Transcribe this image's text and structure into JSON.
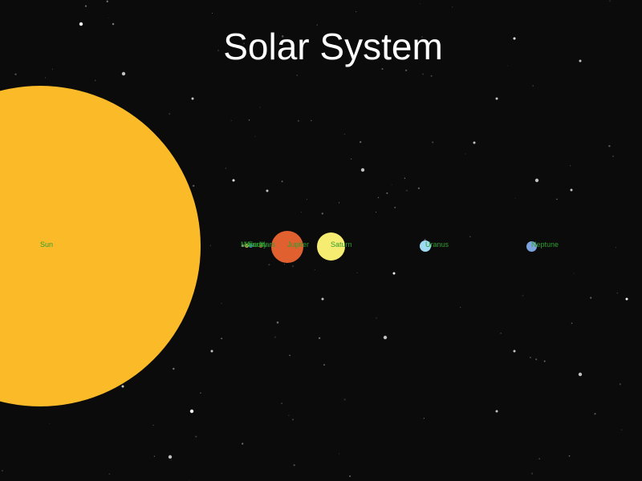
{
  "title": "Solar System",
  "colors": {
    "background": "#0c0b0c",
    "label": "#2e9e2e",
    "sun": "#fbbb28",
    "mercury": "#9a9a9a",
    "venus": "#d9b25a",
    "earth": "#3f7fd6",
    "mars": "#c8502d",
    "jupiter": "#e0602f",
    "saturn": "#f7ec72",
    "uranus": "#9fdcf3",
    "neptune": "#7da3de"
  },
  "bodies": [
    {
      "key": "sun",
      "label": "Sun"
    },
    {
      "key": "mercury",
      "label": "Mercury"
    },
    {
      "key": "venus",
      "label": "Venus"
    },
    {
      "key": "earth",
      "label": "Earth"
    },
    {
      "key": "mars",
      "label": "Mars"
    },
    {
      "key": "jupiter",
      "label": "Jupiter"
    },
    {
      "key": "saturn",
      "label": "Saturn"
    },
    {
      "key": "uranus",
      "label": "Uranus"
    },
    {
      "key": "neptune",
      "label": "Neptune"
    }
  ]
}
